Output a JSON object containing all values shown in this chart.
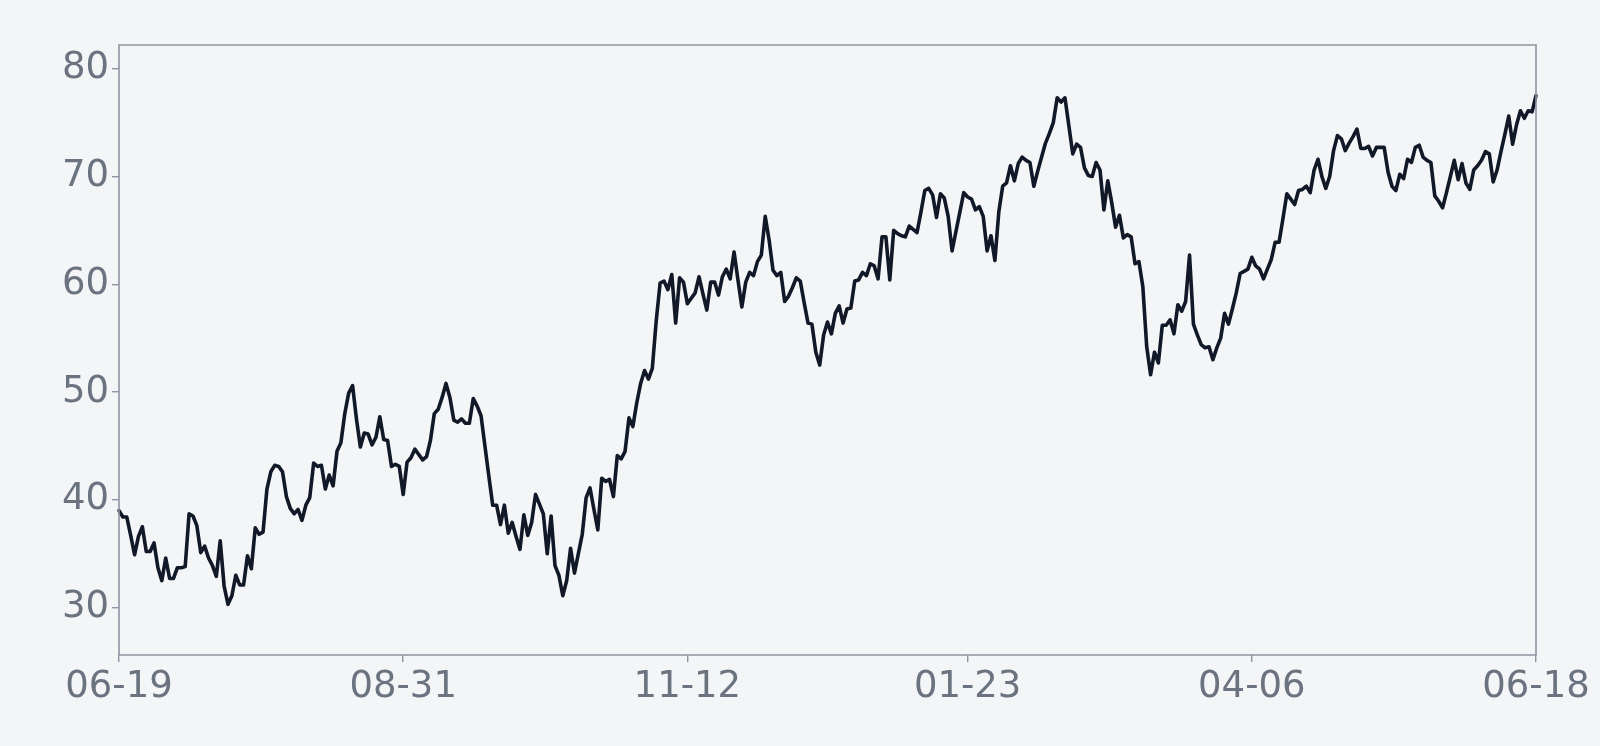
{
  "chart_data": {
    "type": "line",
    "categories": [
      "06-19",
      null,
      null,
      null,
      null,
      null,
      null,
      null,
      null,
      null,
      null,
      null,
      null,
      null,
      null,
      null,
      null,
      null,
      null,
      null,
      null,
      null,
      null,
      null,
      null,
      null,
      null,
      null,
      null,
      null,
      null,
      null,
      null,
      null,
      null,
      null,
      null,
      null,
      null,
      null,
      null,
      null,
      null,
      null,
      null,
      null,
      null,
      null,
      null,
      null,
      null,
      null,
      null,
      null,
      null,
      null,
      null,
      null,
      null,
      null,
      null,
      null,
      null,
      null,
      null,
      null,
      null,
      null,
      null,
      null,
      null,
      null,
      null,
      "08-31",
      null,
      null,
      null,
      null,
      null,
      null,
      null,
      null,
      null,
      null,
      null,
      null,
      null,
      null,
      null,
      null,
      null,
      null,
      null,
      null,
      null,
      null,
      null,
      null,
      null,
      null,
      null,
      null,
      null,
      null,
      null,
      null,
      null,
      null,
      null,
      null,
      null,
      null,
      null,
      null,
      null,
      null,
      null,
      null,
      null,
      null,
      null,
      null,
      null,
      null,
      null,
      null,
      null,
      null,
      null,
      null,
      null,
      null,
      null,
      null,
      null,
      null,
      null,
      null,
      null,
      null,
      null,
      null,
      null,
      null,
      null,
      null,
      "11-12",
      null,
      null,
      null,
      null,
      null,
      null,
      null,
      null,
      null,
      null,
      null,
      null,
      null,
      null,
      null,
      null,
      null,
      null,
      null,
      null,
      null,
      null,
      null,
      null,
      null,
      null,
      null,
      null,
      null,
      null,
      null,
      null,
      null,
      null,
      null,
      null,
      null,
      null,
      null,
      null,
      null,
      null,
      null,
      null,
      null,
      null,
      null,
      null,
      null,
      null,
      null,
      null,
      null,
      null,
      null,
      null,
      null,
      null,
      null,
      null,
      null,
      null,
      null,
      null,
      null,
      null,
      null,
      null,
      null,
      null,
      null,
      "01-23",
      null,
      null,
      null,
      null,
      null,
      null,
      null,
      null,
      null,
      null,
      null,
      null,
      null,
      null,
      null,
      null,
      null,
      null,
      null,
      null,
      null,
      null,
      null,
      null,
      null,
      null,
      null,
      null,
      null,
      null,
      null,
      null,
      null,
      null,
      null,
      null,
      null,
      null,
      null,
      null,
      null,
      null,
      null,
      null,
      null,
      null,
      null,
      null,
      null,
      null,
      null,
      null,
      null,
      null,
      null,
      null,
      null,
      null,
      null,
      null,
      null,
      null,
      null,
      null,
      null,
      null,
      null,
      null,
      null,
      null,
      null,
      null,
      "04-06",
      null,
      null,
      null,
      null,
      null,
      null,
      null,
      null,
      null,
      null,
      null,
      null,
      null,
      null,
      null,
      null,
      null,
      null,
      null,
      null,
      null,
      null,
      null,
      null,
      null,
      null,
      null,
      null,
      null,
      null,
      null,
      null,
      null,
      null,
      null,
      null,
      null,
      null,
      null,
      null,
      null,
      null,
      null,
      null,
      null,
      null,
      null,
      null,
      null,
      null,
      null,
      null,
      null,
      null,
      null,
      null,
      null,
      null,
      null,
      null,
      null,
      null,
      null,
      null,
      null,
      null,
      null,
      null,
      null,
      null,
      null,
      null,
      "06-18"
    ],
    "series": [
      {
        "color": "#111827",
        "values": [
          39.0,
          38.4,
          38.4,
          36.7,
          34.9,
          36.6,
          37.5,
          35.2,
          35.2,
          36.0,
          33.7,
          32.5,
          34.6,
          32.7,
          32.7,
          33.7,
          33.7,
          33.8,
          38.7,
          38.5,
          37.6,
          35.1,
          35.7,
          34.6,
          33.9,
          32.9,
          36.2,
          32.0,
          30.3,
          31.1,
          33.0,
          32.1,
          32.1,
          34.8,
          33.6,
          37.4,
          36.8,
          37.0,
          41.0,
          42.6,
          43.2,
          43.1,
          42.6,
          40.3,
          39.2,
          38.7,
          39.1,
          38.1,
          39.5,
          40.2,
          43.4,
          43.1,
          43.2,
          41.0,
          42.3,
          41.3,
          44.5,
          45.3,
          48.0,
          49.9,
          50.6,
          47.5,
          44.9,
          46.2,
          46.1,
          45.1,
          45.8,
          47.7,
          45.6,
          45.5,
          43.1,
          43.3,
          43.1,
          40.5,
          43.5,
          43.9,
          44.7,
          44.2,
          43.7,
          44.0,
          45.5,
          48.0,
          48.4,
          49.5,
          50.8,
          49.5,
          47.4,
          47.2,
          47.5,
          47.1,
          47.1,
          49.4,
          48.7,
          47.8,
          45.0,
          42.2,
          39.5,
          39.5,
          37.7,
          39.5,
          36.9,
          37.9,
          36.6,
          35.4,
          38.6,
          36.7,
          37.9,
          40.5,
          39.6,
          38.7,
          35.0,
          38.5,
          33.9,
          33.0,
          31.1,
          32.5,
          35.5,
          33.2,
          35.0,
          36.8,
          40.2,
          41.1,
          39.1,
          37.2,
          42.0,
          41.7,
          41.9,
          40.3,
          44.1,
          43.8,
          44.5,
          47.6,
          46.8,
          49.0,
          50.8,
          52.0,
          51.2,
          52.2,
          56.6,
          60.1,
          60.3,
          59.5,
          60.9,
          56.4,
          60.6,
          60.2,
          58.2,
          58.7,
          59.2,
          60.7,
          59.1,
          57.6,
          60.2,
          60.2,
          59.0,
          60.7,
          61.4,
          60.5,
          63.0,
          60.4,
          57.9,
          60.2,
          61.1,
          60.8,
          62.1,
          62.7,
          66.3,
          64.1,
          61.3,
          60.8,
          61.1,
          58.4,
          58.9,
          59.7,
          60.6,
          60.3,
          58.3,
          56.4,
          56.3,
          53.7,
          52.5,
          55.3,
          56.5,
          55.4,
          57.3,
          58.0,
          56.4,
          57.7,
          57.8,
          60.3,
          60.4,
          61.1,
          60.8,
          61.9,
          61.7,
          60.5,
          64.4,
          64.4,
          60.4,
          65.0,
          64.7,
          64.5,
          64.4,
          65.4,
          65.1,
          64.8,
          66.7,
          68.7,
          68.9,
          68.3,
          66.2,
          68.4,
          68.0,
          66.3,
          63.1,
          64.9,
          66.7,
          68.5,
          68.1,
          67.9,
          66.9,
          67.2,
          66.3,
          63.1,
          64.5,
          62.2,
          66.7,
          69.1,
          69.4,
          71.0,
          69.6,
          71.2,
          71.8,
          71.5,
          71.3,
          69.1,
          70.5,
          71.8,
          73.1,
          74.0,
          75.0,
          77.3,
          76.9,
          77.3,
          74.7,
          72.1,
          73.0,
          72.7,
          70.8,
          70.1,
          70.0,
          71.3,
          70.6,
          66.9,
          69.6,
          67.6,
          65.3,
          66.4,
          64.3,
          64.6,
          64.4,
          61.9,
          62.1,
          59.8,
          54.2,
          51.6,
          53.7,
          52.7,
          56.2,
          56.2,
          56.7,
          55.4,
          58.1,
          57.5,
          58.4,
          62.7,
          56.3,
          55.3,
          54.4,
          54.1,
          54.2,
          53.0,
          54.1,
          55.0,
          57.3,
          56.3,
          57.7,
          59.2,
          61.0,
          61.2,
          61.4,
          62.5,
          61.7,
          61.4,
          60.5,
          61.4,
          62.3,
          63.9,
          63.9,
          66.1,
          68.4,
          67.9,
          67.4,
          68.7,
          68.8,
          69.1,
          68.5,
          70.6,
          71.6,
          70.0,
          68.9,
          70.0,
          72.4,
          73.8,
          73.5,
          72.4,
          73.1,
          73.7,
          74.4,
          72.6,
          72.6,
          72.8,
          71.9,
          72.7,
          72.7,
          72.7,
          70.4,
          69.1,
          68.7,
          70.2,
          69.8,
          71.6,
          71.3,
          72.7,
          72.9,
          71.8,
          71.5,
          71.3,
          68.2,
          67.7,
          67.1,
          68.5,
          70.0,
          71.5,
          69.7,
          71.2,
          69.4,
          68.8,
          70.6,
          71.0,
          71.5,
          72.3,
          72.1,
          69.5,
          70.6,
          72.3,
          73.9,
          75.6,
          73.0,
          74.8,
          76.1,
          75.4,
          76.1,
          76.0,
          77.5
        ]
      }
    ],
    "ylim": [
      25.6,
      82.2
    ],
    "yticks": [
      30,
      40,
      50,
      60,
      70,
      80
    ]
  }
}
